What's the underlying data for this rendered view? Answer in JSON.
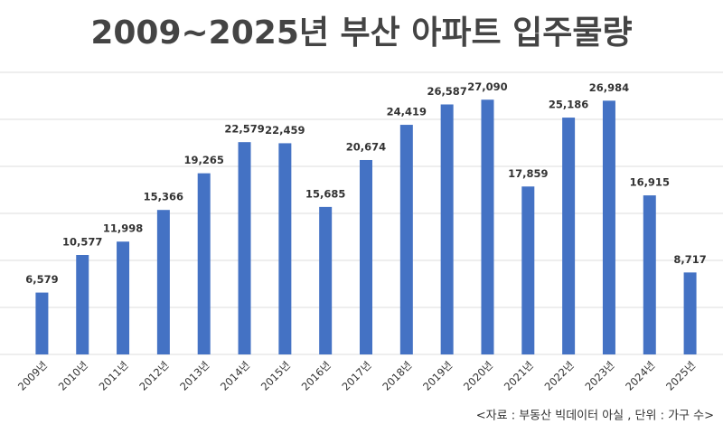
{
  "chart_data": {
    "type": "bar",
    "title": "2009~2025년 부산 아파트 입주물량",
    "categories": [
      "2009년",
      "2010년",
      "2011년",
      "2012년",
      "2013년",
      "2014년",
      "2015년",
      "2016년",
      "2017년",
      "2018년",
      "2019년",
      "2020년",
      "2021년",
      "2022년",
      "2023년",
      "2024년",
      "2025년"
    ],
    "values": [
      6579,
      10577,
      11998,
      15366,
      19265,
      22579,
      22459,
      15685,
      20674,
      24419,
      26587,
      27090,
      17859,
      25186,
      26984,
      16915,
      8717
    ],
    "value_labels": [
      "6,579",
      "10,577",
      "11,998",
      "15,366",
      "19,265",
      "22,579",
      "22,459",
      "15,685",
      "20,674",
      "24,419",
      "26,587",
      "27,090",
      "17,859",
      "25,186",
      "26,984",
      "16,915",
      "8,717"
    ],
    "color": "#4472c4",
    "ylim": [
      0,
      30000
    ],
    "yticks": [
      0,
      5000,
      10000,
      15000,
      20000,
      25000,
      30000
    ],
    "grid": true,
    "note": "<자료 : 부동산 빅데이터 아실 , 단위 : 가구 수>"
  }
}
